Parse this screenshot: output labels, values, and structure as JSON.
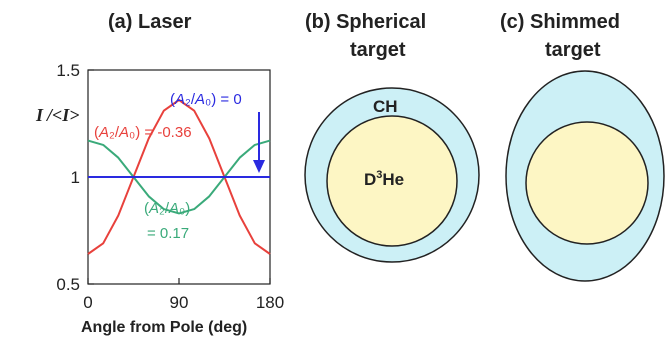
{
  "panels": {
    "a": {
      "title": "(a)  Laser"
    },
    "b": {
      "title_line1": "(b) Spherical",
      "title_line2": "target",
      "shell_label": "CH",
      "core_label_main": "D",
      "core_label_sup": "3",
      "core_label_rest": "He"
    },
    "c": {
      "title_line1": "(c) Shimmed",
      "title_line2": "target"
    }
  },
  "colors": {
    "red": "#e8413c",
    "green": "#3aaa7a",
    "blue": "#2a2ae0",
    "shell_fill": "#ccf0f6",
    "core_fill": "#fdf6c4",
    "outline": "#222222"
  },
  "chart_data": {
    "type": "line",
    "title": "(a)  Laser",
    "xlabel": "Angle from Pole (deg)",
    "ylabel": "I / <I>",
    "xlim": [
      0,
      180
    ],
    "ylim": [
      0.5,
      1.5
    ],
    "xticks": [
      "0",
      "90",
      "180"
    ],
    "yticks": [
      "0.5",
      "1",
      "1.5"
    ],
    "series": [
      {
        "name": "(A2/A0) = -0.36",
        "label_text": "(A₂/A₀) = -0.36",
        "color": "#e8413c",
        "x": [
          0,
          15,
          30,
          45,
          60,
          75,
          90,
          105,
          120,
          135,
          150,
          165,
          180
        ],
        "y": [
          0.64,
          0.69,
          0.82,
          1.0,
          1.18,
          1.31,
          1.36,
          1.31,
          1.18,
          1.0,
          0.82,
          0.69,
          0.64
        ]
      },
      {
        "name": "(A2/A0) = 0.17",
        "label_text_line1": "(A₂/A₀)",
        "label_text_line2": "= 0.17",
        "color": "#3aaa7a",
        "x": [
          0,
          15,
          30,
          45,
          60,
          75,
          90,
          105,
          120,
          135,
          150,
          165,
          180
        ],
        "y": [
          1.17,
          1.15,
          1.09,
          1.0,
          0.91,
          0.85,
          0.83,
          0.85,
          0.91,
          1.0,
          1.09,
          1.15,
          1.17
        ]
      },
      {
        "name": "(A2/A0) = 0",
        "label_text": "(A₂/A₀) = 0",
        "color": "#2a2ae0",
        "x": [
          0,
          180
        ],
        "y": [
          1.0,
          1.0
        ]
      }
    ]
  }
}
